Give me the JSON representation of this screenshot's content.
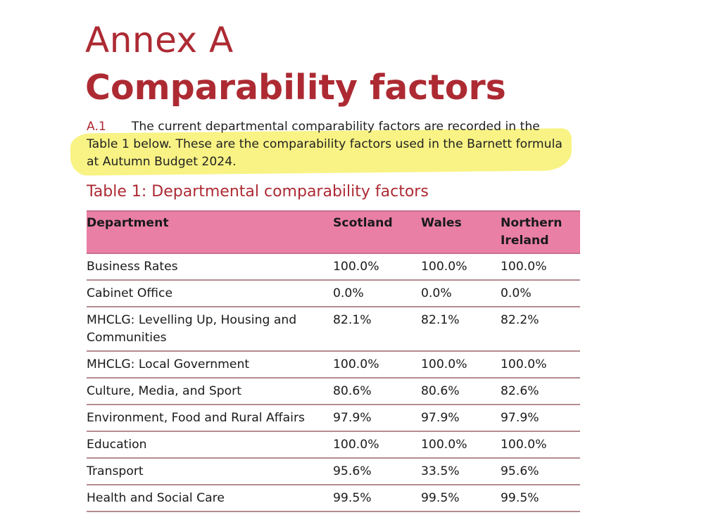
{
  "annex_label": "Annex A",
  "title": "Comparability factors",
  "paragraph": {
    "number": "A.1",
    "text": "The current departmental comparability factors are recorded in the Table 1 below. These are the comparability factors used in the Barnett formula at Autumn Budget 2024."
  },
  "table": {
    "caption": "Table 1: Departmental comparability factors",
    "headers": [
      "Department",
      "Scotland",
      "Wales",
      "Northern Ireland"
    ],
    "rows": [
      [
        "Business Rates",
        "100.0%",
        "100.0%",
        "100.0%"
      ],
      [
        "Cabinet Office",
        "0.0%",
        "0.0%",
        "0.0%"
      ],
      [
        "MHCLG: Levelling Up, Housing and Communities",
        "82.1%",
        "82.1%",
        "82.2%"
      ],
      [
        "MHCLG: Local Government",
        "100.0%",
        "100.0%",
        "100.0%"
      ],
      [
        "Culture, Media, and Sport",
        "80.6%",
        "80.6%",
        "82.6%"
      ],
      [
        "Environment, Food and Rural Affairs",
        "97.9%",
        "97.9%",
        "97.9%"
      ],
      [
        "Education",
        "100.0%",
        "100.0%",
        "100.0%"
      ],
      [
        "Transport",
        "95.6%",
        "33.5%",
        "95.6%"
      ],
      [
        "Health and Social Care",
        "99.5%",
        "99.5%",
        "99.5%"
      ]
    ]
  },
  "colors": {
    "accent": "#ad2a33",
    "header_bg": "#ea7fa6",
    "highlight": "#f6ef5a"
  }
}
